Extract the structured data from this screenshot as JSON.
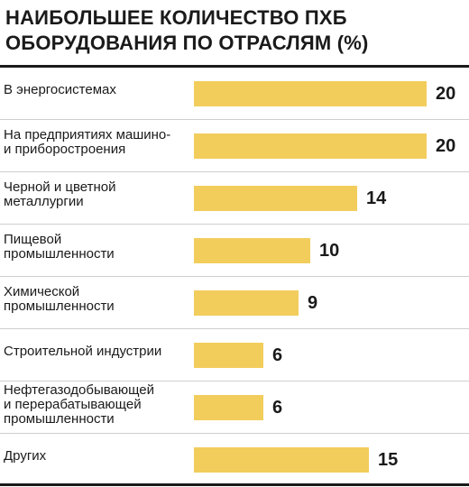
{
  "title_lines": [
    "НАИБОЛЬШЕЕ КОЛИЧЕСТВО ПХБ",
    "ОБОРУДОВАНИЯ ПО ОТРАСЛЯМ (%)"
  ],
  "colors": {
    "bar": "#f2cd5c",
    "text": "#1a1a1a"
  },
  "chart_data": {
    "type": "bar",
    "orientation": "horizontal",
    "title": "НАИБОЛЬШЕЕ КОЛИЧЕСТВО ПХБ ОБОРУДОВАНИЯ ПО ОТРАСЛЯМ (%)",
    "categories": [
      [
        "В энергосистемах"
      ],
      [
        "На предприятиях машино-",
        "и приборостроения"
      ],
      [
        "Черной и цветной",
        "металлургии"
      ],
      [
        "Пищевой",
        "промышленности"
      ],
      [
        "Химической",
        "промышленности"
      ],
      [
        "Строительной индустрии"
      ],
      [
        "Нефтегазодобывающей",
        "и перерабатывающей",
        "промышленности"
      ],
      [
        "Других"
      ]
    ],
    "values": [
      20,
      20,
      14,
      10,
      9,
      6,
      6,
      15
    ],
    "value_labels": [
      "20",
      "20",
      "14",
      "10",
      "9",
      "6",
      "6",
      "15"
    ],
    "xlim": [
      0,
      20
    ],
    "grid": false,
    "legend": false
  }
}
